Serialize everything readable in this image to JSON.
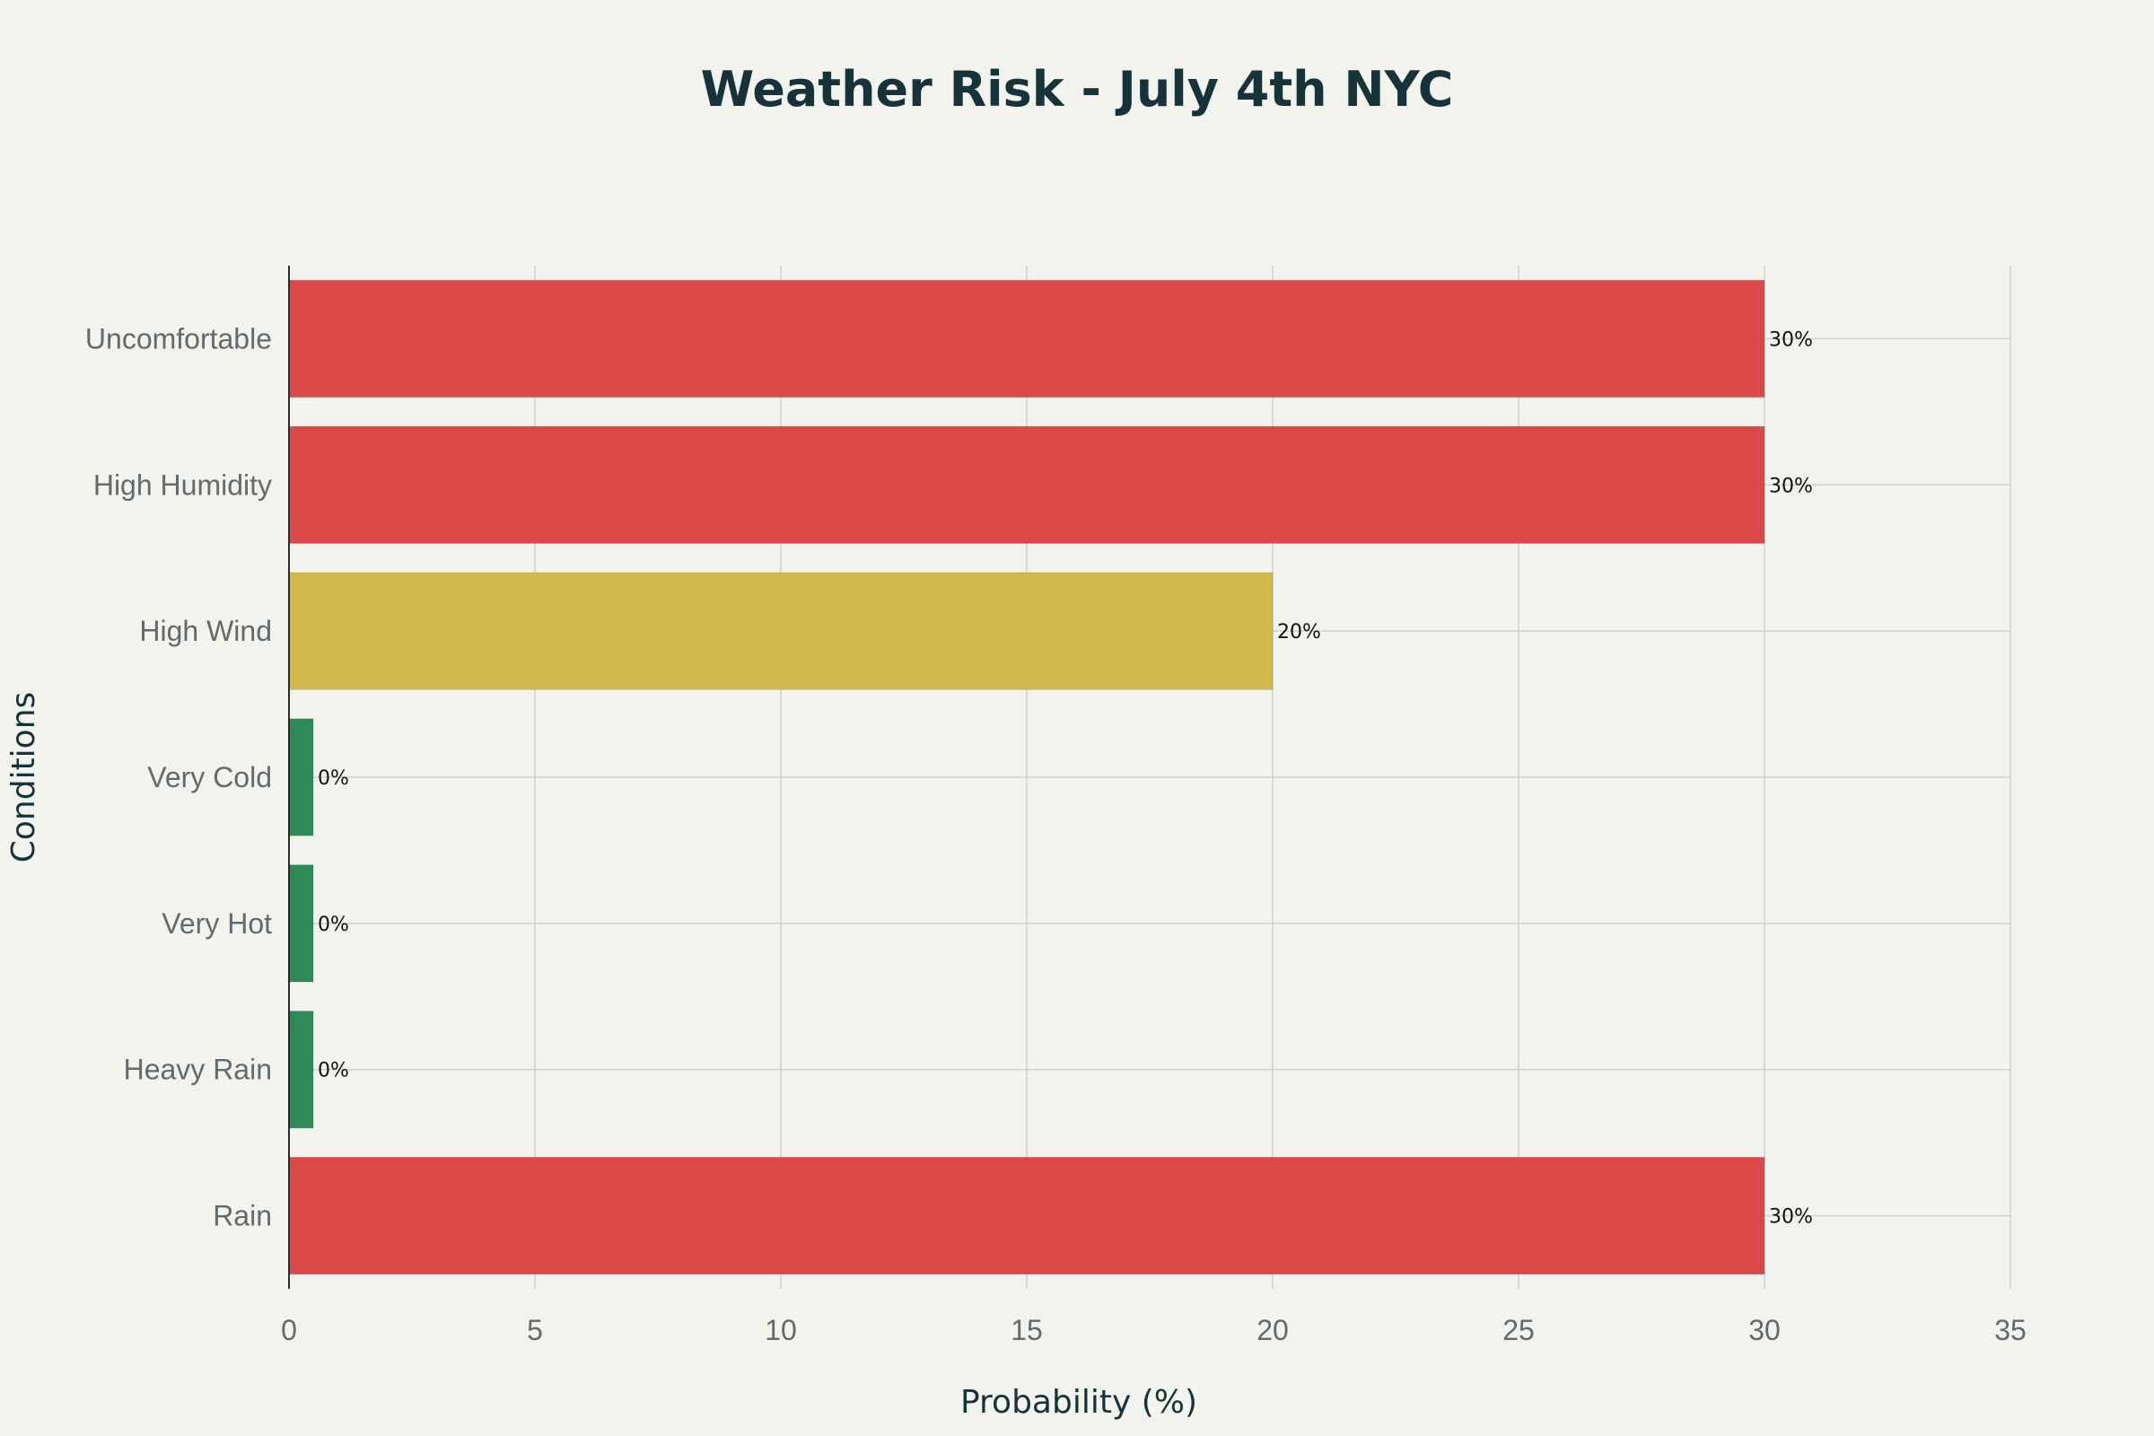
{
  "chart_data": {
    "type": "bar",
    "orientation": "horizontal",
    "title": "Weather Risk - July 4th NYC",
    "xlabel": "Probability (%)",
    "ylabel": "Conditions",
    "xlim": [
      0,
      35
    ],
    "x_ticks": [
      0,
      5,
      10,
      15,
      20,
      25,
      30,
      35
    ],
    "grid": true,
    "legend": "none",
    "categories": [
      "Uncomfortable",
      "High Humidity",
      "High Wind",
      "Very Cold",
      "Very Hot",
      "Heavy Rain",
      "Rain"
    ],
    "values": [
      30,
      30,
      20,
      0,
      0,
      0,
      30
    ],
    "data_labels": [
      "30%",
      "30%",
      "20%",
      "0%",
      "0%",
      "0%",
      "30%"
    ],
    "colors": [
      "#db4848",
      "#db4848",
      "#d3b94d",
      "#2e8b57",
      "#2e8b57",
      "#2e8b57",
      "#db4848"
    ]
  }
}
